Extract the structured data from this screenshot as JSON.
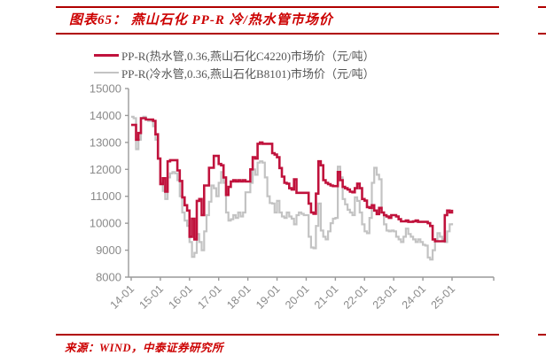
{
  "figure": {
    "title": "图表65：  燕山石化 PP-R 冷/热水管市场价",
    "source": "来源：WIND，中泰证券研究所"
  },
  "colors": {
    "rule_red": "#b00000",
    "title_red": "#cc0000",
    "hot_series_red": "#c0123c",
    "cold_series_gray": "#c3c3c3",
    "axis_gray": "#9a9a9a",
    "tick_label_gray": "#8a8a8a",
    "legend_text_gray": "#555555"
  },
  "chart_data": {
    "type": "line",
    "title": "燕山石化PP-R冷/热水管市场价",
    "x_start": "2014-01",
    "x_interval": "monthly",
    "x_tick_labels": [
      "14-01",
      "15-01",
      "16-01",
      "17-01",
      "18-01",
      "19-01",
      "20-01",
      "21-01",
      "22-01",
      "23-01",
      "24-01",
      "25-01"
    ],
    "ylim": [
      8000,
      15000
    ],
    "ytick_step": 1000,
    "y_tick_labels": [
      "8000",
      "9000",
      "10000",
      "11000",
      "12000",
      "13000",
      "14000",
      "15000"
    ],
    "ylabel": "元/吨",
    "grid": false,
    "legend_position": "top",
    "series": [
      {
        "name": "PP-R(热水管,0.36,燕山石化C4220)市场价（元/吨）",
        "color": "#c0123c",
        "values": [
          13650,
          13650,
          13100,
          13350,
          13900,
          13900,
          13850,
          13850,
          13850,
          13800,
          13300,
          12400,
          11450,
          11670,
          11170,
          12300,
          12340,
          12340,
          12340,
          11960,
          11570,
          10960,
          10670,
          10470,
          9500,
          10170,
          9400,
          10830,
          10900,
          10300,
          11400,
          11400,
          12060,
          12060,
          12500,
          12500,
          12200,
          12150,
          11700,
          11050,
          11350,
          11550,
          11600,
          11550,
          11600,
          11550,
          11600,
          11550,
          11550,
          12000,
          12450,
          12400,
          12950,
          13000,
          12950,
          12950,
          12950,
          12950,
          12600,
          12550,
          12450,
          12050,
          11730,
          11500,
          11470,
          11300,
          11250,
          11630,
          11130,
          11130,
          11130,
          11130,
          11130,
          10730,
          10400,
          10350,
          11100,
          12300,
          12150,
          11600,
          11500,
          11450,
          11400,
          11380,
          11380,
          11900,
          11600,
          11350,
          11300,
          11250,
          11170,
          11150,
          11300,
          11470,
          11300,
          10900,
          10840,
          10600,
          10570,
          10670,
          10470,
          10340,
          10570,
          10400,
          10300,
          10250,
          10200,
          10300,
          10300,
          10250,
          10150,
          10070,
          10070,
          10100,
          10050,
          10050,
          10070,
          10100,
          10050,
          10050,
          10050,
          10050,
          10000,
          9900,
          9400,
          9330,
          9330,
          9330,
          9330,
          10300,
          10470,
          10400,
          10500
        ]
      },
      {
        "name": "PP-R(冷水管,0.36,燕山石化B8101)市场价（元/吨）",
        "color": "#c3c3c3",
        "values": [
          13950,
          13900,
          12750,
          13100,
          13900,
          13950,
          13850,
          13800,
          13800,
          13600,
          13100,
          12400,
          11500,
          11200,
          10900,
          11700,
          11850,
          11900,
          11850,
          11600,
          11000,
          10400,
          10100,
          9900,
          9300,
          8750,
          8900,
          9600,
          9300,
          9000,
          9700,
          10300,
          10800,
          11400,
          11300,
          11000,
          11500,
          11900,
          11500,
          10400,
          10100,
          10150,
          10300,
          10200,
          10400,
          10250,
          10400,
          11150,
          11150,
          11500,
          12000,
          11800,
          12250,
          12300,
          12250,
          11700,
          11000,
          10750,
          10730,
          10400,
          10830,
          10400,
          10250,
          10200,
          10400,
          10250,
          10170,
          9960,
          10300,
          10400,
          10350,
          10300,
          10300,
          9500,
          9100,
          9070,
          9900,
          10730,
          9730,
          9500,
          9400,
          9700,
          10000,
          10170,
          10200,
          12100,
          11700,
          10900,
          10700,
          10500,
          10400,
          10300,
          10960,
          10830,
          10400,
          9960,
          9700,
          9630,
          10200,
          11500,
          12060,
          11800,
          11630,
          10400,
          9960,
          9730,
          9700,
          9730,
          9700,
          9500,
          9400,
          9300,
          9500,
          9800,
          9600,
          9500,
          9400,
          9300,
          9400,
          9300,
          9200,
          9170,
          8730,
          8650,
          9000,
          9400,
          9630,
          9500,
          9400,
          9300,
          9700,
          9960,
          10000
        ]
      }
    ]
  }
}
